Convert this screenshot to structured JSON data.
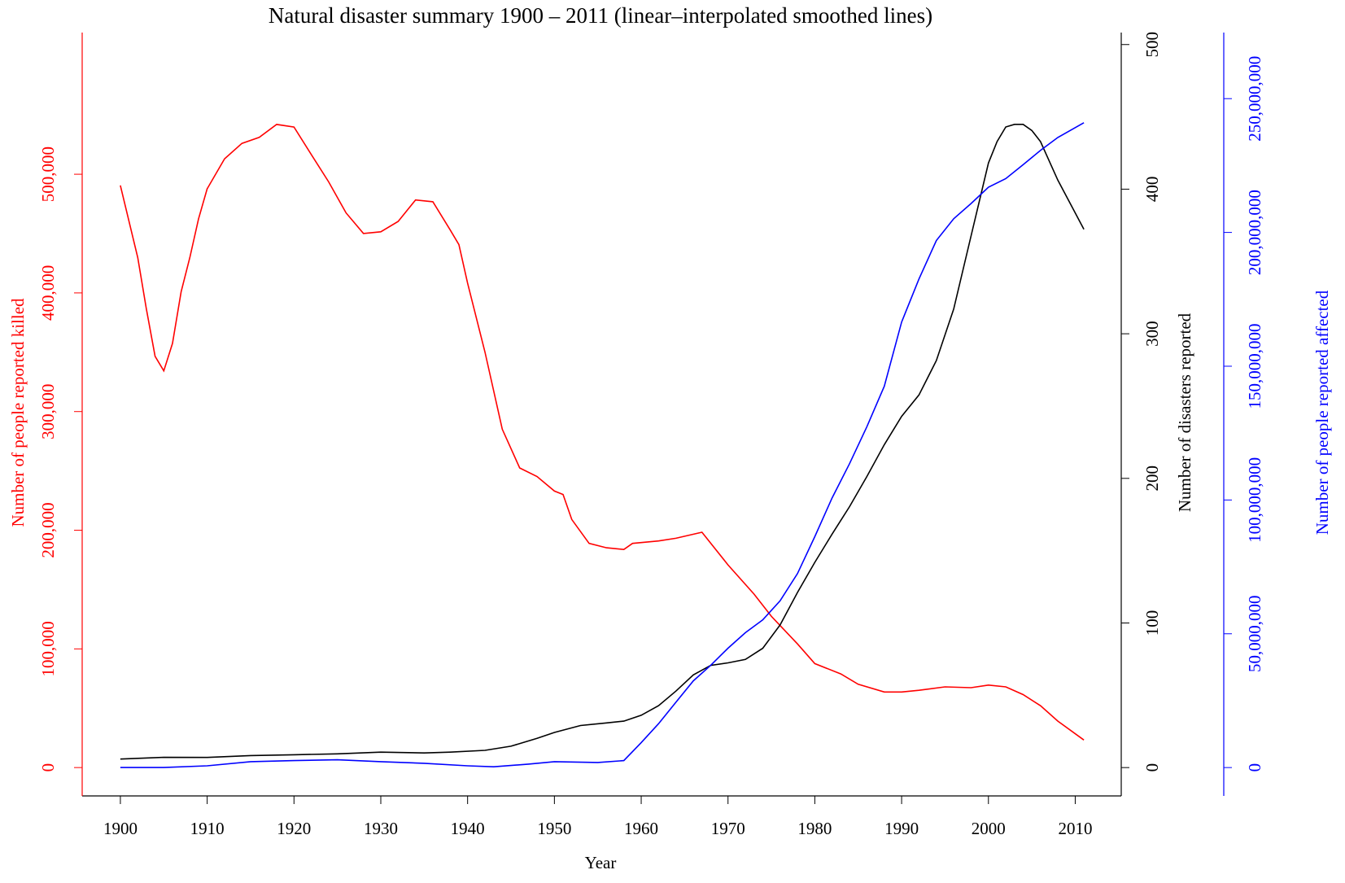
{
  "chart_data": {
    "type": "line",
    "title": "Natural disaster summary 1900 – 2011 (linear–interpolated smoothed lines)",
    "xlabel": "Year",
    "ylabel": "Number of people reported killed",
    "y2label": "Number of disasters reported",
    "y3label": "Number of people reported affected",
    "xlim": [
      1895.6,
      2015.3
    ],
    "xticks": [
      1900,
      1910,
      1920,
      1930,
      1940,
      1950,
      1960,
      1970,
      1980,
      1990,
      2000,
      2010
    ],
    "ylim": [
      -23900,
      619400
    ],
    "yticks": [
      0,
      {
        "value": 100000,
        "label": "100,000"
      },
      {
        "value": 200000,
        "label": "200,000"
      },
      {
        "value": 300000,
        "label": "300,000"
      },
      {
        "value": 400000,
        "label": "400,000"
      },
      {
        "value": 500000,
        "label": "500,000"
      }
    ],
    "y2lim": [
      -19.6,
      508.3
    ],
    "y2ticks": [
      0,
      100,
      200,
      300,
      400,
      500
    ],
    "y3lim": [
      -10600000,
      274700000
    ],
    "y3ticks": [
      0,
      {
        "value": 50000000,
        "label": "50,000,000"
      },
      {
        "value": 100000000,
        "label": "100,000,000"
      },
      {
        "value": 150000000,
        "label": "150,000,000"
      },
      {
        "value": 200000000,
        "label": "200,000,000"
      },
      {
        "value": 250000000,
        "label": "250,000,000"
      }
    ],
    "series": [
      {
        "name": "Number of people reported killed",
        "color": "#ff0000",
        "axis": "y",
        "x": [
          1900,
          1902,
          1903,
          1904,
          1905,
          1906,
          1907,
          1908,
          1909,
          1910,
          1912,
          1914,
          1916,
          1918,
          1920,
          1922,
          1924,
          1926,
          1928,
          1930,
          1932,
          1934,
          1936,
          1938,
          1939,
          1940,
          1942,
          1944,
          1946,
          1948,
          1950,
          1951,
          1952,
          1954,
          1956,
          1958,
          1959,
          1962,
          1964,
          1967,
          1970,
          1973,
          1975,
          1978,
          1980,
          1983,
          1985,
          1988,
          1990,
          1992,
          1995,
          1998,
          2000,
          2002,
          2004,
          2006,
          2008,
          2011
        ],
        "values": [
          490600,
          429800,
          386400,
          346600,
          334300,
          357500,
          400900,
          429800,
          462400,
          487700,
          513000,
          526000,
          531100,
          542000,
          539800,
          516600,
          493500,
          467400,
          450100,
          451500,
          460200,
          478300,
          476800,
          453000,
          440700,
          408100,
          350200,
          285100,
          252500,
          245300,
          233000,
          230100,
          209100,
          188900,
          185200,
          183800,
          188900,
          191000,
          193200,
          198300,
          170800,
          146200,
          127400,
          104200,
          87600,
          78900,
          70200,
          63700,
          63700,
          65100,
          68000,
          67300,
          69500,
          68000,
          61500,
          52100,
          39100,
          23200
        ]
      },
      {
        "name": "Number of disasters reported",
        "color": "#000000",
        "axis": "y2",
        "x": [
          1900,
          1905,
          1910,
          1915,
          1920,
          1925,
          1930,
          1935,
          1938,
          1942,
          1945,
          1948,
          1950,
          1953,
          1956,
          1958,
          1960,
          1962,
          1964,
          1966,
          1968,
          1970,
          1972,
          1974,
          1976,
          1978,
          1980,
          1982,
          1984,
          1986,
          1988,
          1990,
          1992,
          1994,
          1996,
          1998,
          2000,
          2001,
          2002,
          2003,
          2004,
          2005,
          2006,
          2008,
          2011
        ],
        "values": [
          5.9,
          7.1,
          7,
          8.3,
          8.9,
          9.5,
          10.7,
          10.1,
          10.7,
          11.9,
          14.8,
          20.2,
          24.3,
          29.1,
          30.9,
          32.1,
          36.2,
          42.8,
          52.9,
          64.1,
          70.7,
          72.4,
          74.8,
          82.5,
          98.6,
          121.1,
          141.9,
          161.5,
          180.5,
          201.3,
          223.3,
          242.9,
          257.7,
          281.5,
          317.1,
          367.6,
          418.1,
          432.9,
          443,
          444.8,
          444.8,
          440.6,
          432.9,
          406.2,
          372.3
        ]
      },
      {
        "name": "Number of people reported affected",
        "color": "#0000ff",
        "axis": "y3",
        "x": [
          1900,
          1905,
          1910,
          1915,
          1920,
          1925,
          1930,
          1935,
          1940,
          1943,
          1947,
          1950,
          1955,
          1958,
          1960,
          1962,
          1964,
          1966,
          1968,
          1970,
          1972,
          1974,
          1976,
          1978,
          1980,
          1982,
          1984,
          1986,
          1988,
          1990,
          1992,
          1994,
          1996,
          1998,
          2000,
          2002,
          2004,
          2006,
          2008,
          2011
        ],
        "values": [
          0,
          0,
          640000,
          2200000,
          2600000,
          2900000,
          2200000,
          1600000,
          640000,
          300000,
          1300000,
          2200000,
          1900000,
          2600000,
          9300000,
          16400000,
          24400000,
          32400000,
          38200000,
          44600000,
          50400000,
          55200000,
          62300000,
          72500000,
          86300000,
          100800000,
          113600000,
          127400000,
          142500000,
          166500000,
          182600000,
          197000000,
          205100000,
          210800000,
          216900000,
          220100000,
          225300000,
          230700000,
          235500000,
          241000000
        ]
      }
    ]
  }
}
